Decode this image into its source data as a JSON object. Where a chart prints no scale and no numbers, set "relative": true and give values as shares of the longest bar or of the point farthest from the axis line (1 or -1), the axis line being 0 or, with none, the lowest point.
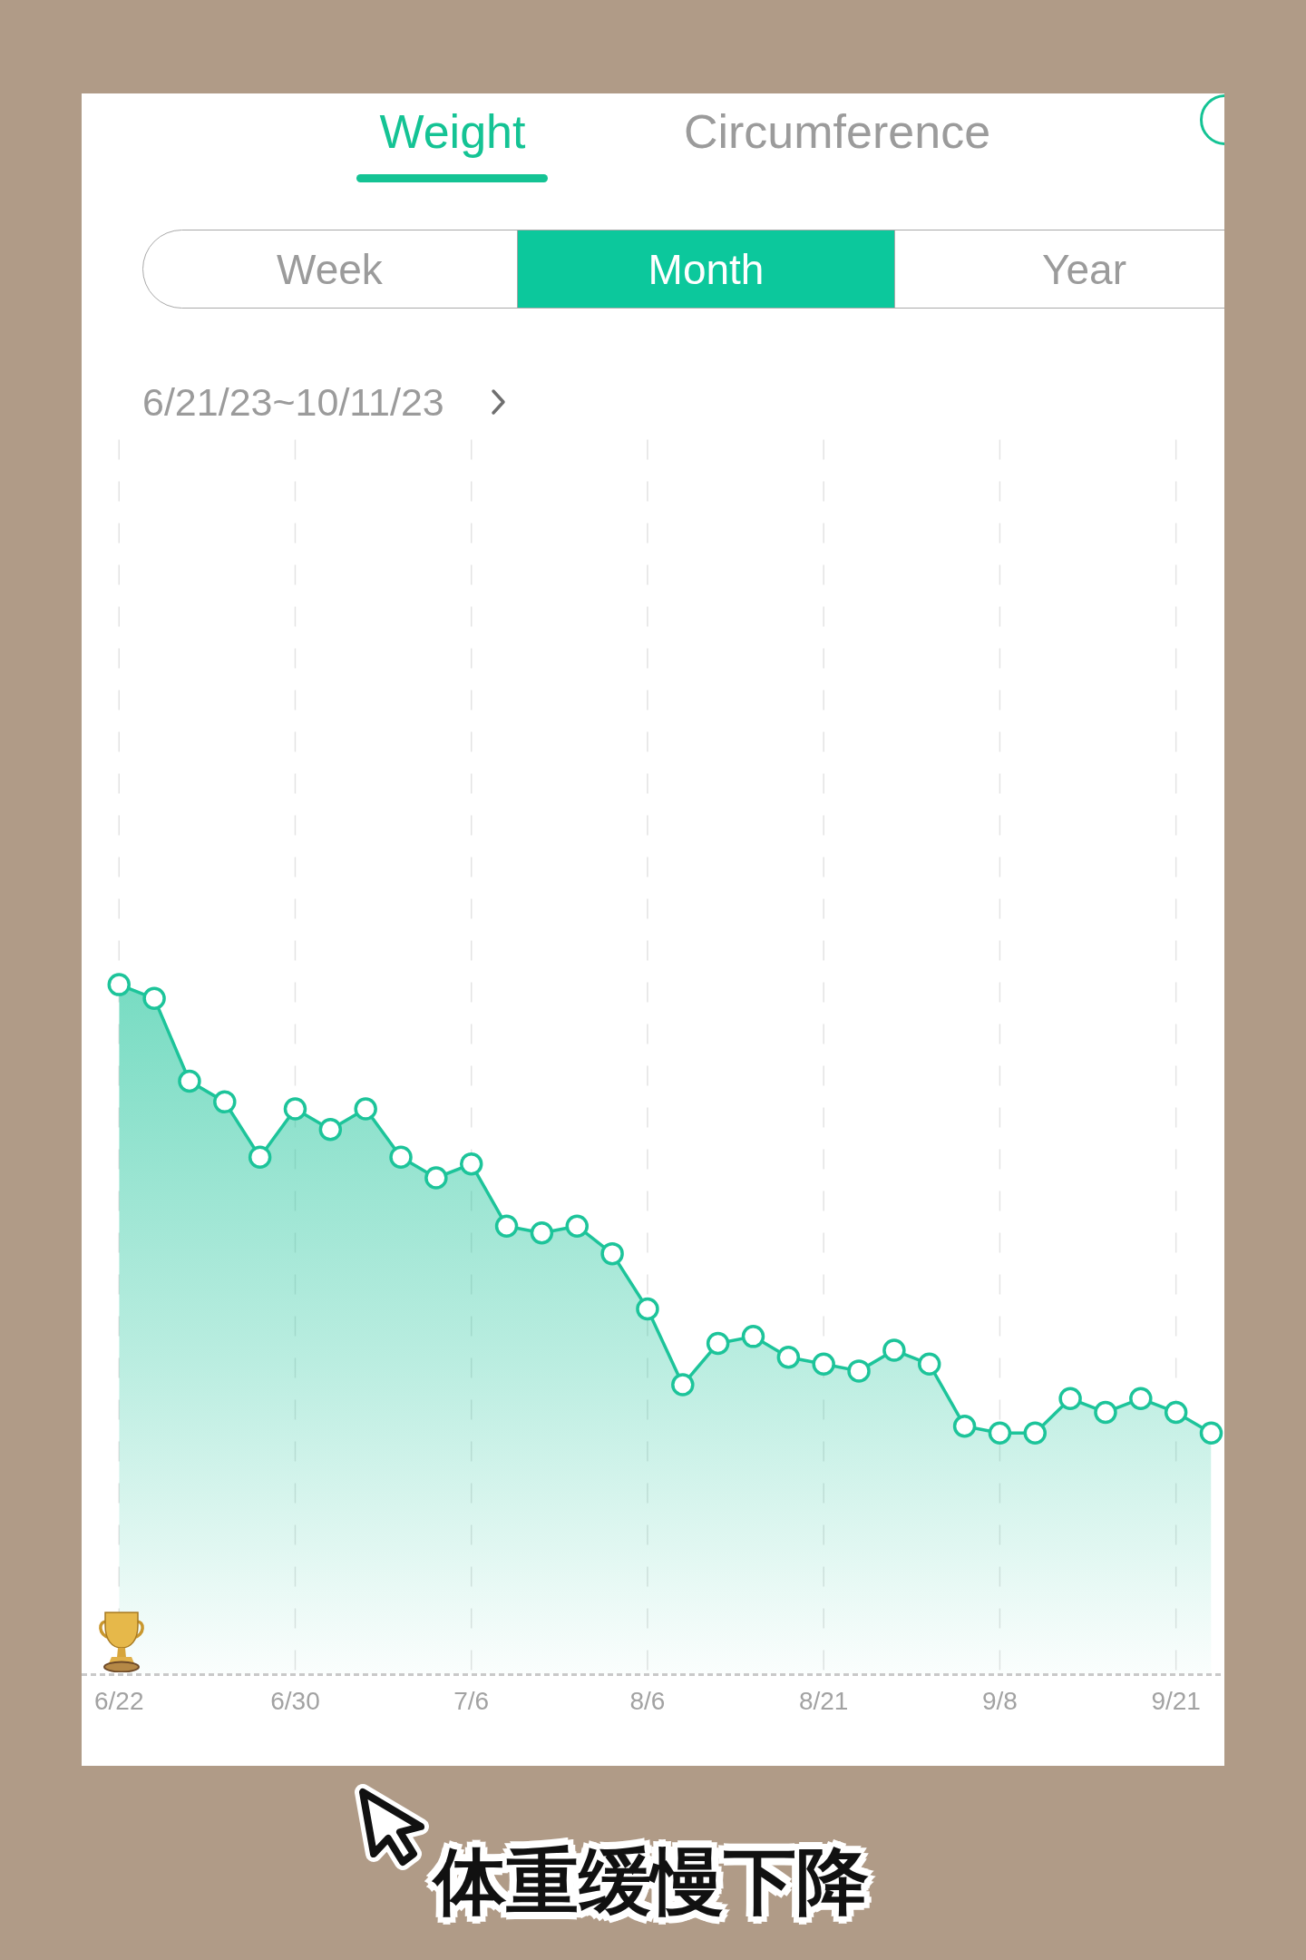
{
  "chart_data": {
    "type": "area",
    "subtitle": "6/21/23~10/11/23",
    "annotations": [
      "Weight",
      "Circumference",
      "Week",
      "Month",
      "Year",
      "体重缓慢下降"
    ],
    "categories": [
      "6/22",
      null,
      null,
      null,
      null,
      "6/30",
      null,
      null,
      null,
      null,
      "7/6",
      null,
      null,
      null,
      null,
      "8/6",
      null,
      null,
      null,
      null,
      "8/21",
      null,
      null,
      null,
      null,
      "9/8",
      null,
      null,
      null,
      null,
      "9/21",
      null
    ],
    "relative": true,
    "color": "#1dc49a",
    "values": [
      1,
      0.98,
      0.86,
      0.83,
      0.75,
      0.82,
      0.79,
      0.82,
      0.75,
      0.72,
      0.74,
      0.65,
      0.64,
      0.65,
      0.61,
      0.53,
      0.42,
      0.48,
      0.49,
      0.46,
      0.45,
      0.44,
      0.47,
      0.45,
      0.36,
      0.35,
      0.35,
      0.4,
      0.38,
      0.4,
      0.38,
      0.35
    ],
    "marker": "circle",
    "grid": "x",
    "tick_labels": "x"
  }
}
